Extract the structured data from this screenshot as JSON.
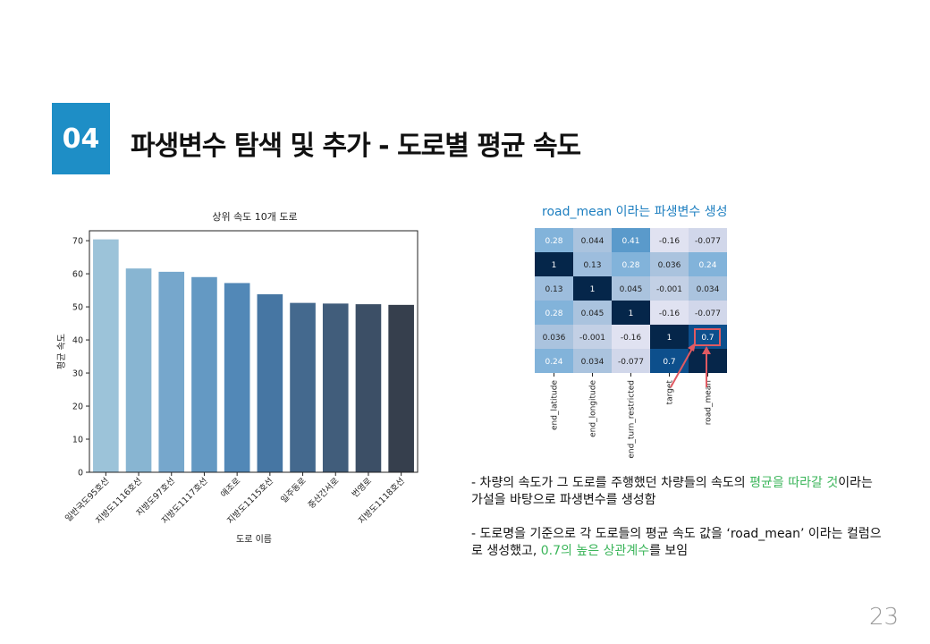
{
  "slide": {
    "number_badge": "04",
    "title": "파생변수 탐색 및 추가 - 도로별 평균 속도",
    "page_number": "23"
  },
  "colors": {
    "accent": "#1e8ec6",
    "highlight_text": "#3bb55a",
    "heatmap_caption": "#1e7fc0",
    "annotation_box": "#e05a62"
  },
  "heatmap": {
    "caption": "road_mean 이라는 파생변수 생성",
    "columns": [
      "end_latitude",
      "end_longitude",
      "end_turn_restricted",
      "target",
      "road_mean"
    ],
    "rows": [
      [
        "0.28",
        "0.044",
        "0.41",
        "-0.16",
        "-0.077"
      ],
      [
        "1",
        "0.13",
        "0.28",
        "0.036",
        "0.24"
      ],
      [
        "0.13",
        "1",
        "0.045",
        "-0.001",
        "0.034"
      ],
      [
        "0.28",
        "0.045",
        "1",
        "-0.16",
        "-0.077"
      ],
      [
        "0.036",
        "-0.001",
        "-0.16",
        "1",
        "0.7"
      ],
      [
        "0.24",
        "0.034",
        "-0.077",
        "0.7",
        ""
      ]
    ],
    "highlighted_value": "0.7"
  },
  "description": {
    "p1_parts": [
      "- 차량의 속도가 그 도로를 주행했던 차량들의 속도의 ",
      "평균을 따라갈 것",
      "이라는 가설을 바탕으로 파생변수를 생성함"
    ],
    "p2_parts": [
      "- 도로명을 기준으로 각 도로들의 평균 속도 값을 ‘road_mean’ 이라는 컬럼으로 생성했고, ",
      "0.7의 높은 상관계수",
      "를 보임"
    ]
  },
  "chart_data": {
    "type": "bar",
    "title": "상위 속도 10개 도로",
    "xlabel": "도로 이름",
    "ylabel": "평균 속도",
    "categories": [
      "일반국도95호선",
      "지방도1116호선",
      "지방도97호선",
      "지방도1117호선",
      "애조로",
      "지방도1115호선",
      "일주동로",
      "중산간서로",
      "번영로",
      "지방도1118호선"
    ],
    "values": [
      70.4,
      61.6,
      60.6,
      59.0,
      57.2,
      53.8,
      51.2,
      51.0,
      50.8,
      50.6
    ],
    "colors": [
      "#9cc3d9",
      "#88b5d2",
      "#76a7cc",
      "#6499c3",
      "#5288b7",
      "#4676a3",
      "#44698e",
      "#415d7b",
      "#3c4f66",
      "#363f4d"
    ],
    "ylim": [
      0,
      73
    ],
    "yticks": [
      0,
      10,
      20,
      30,
      40,
      50,
      60,
      70
    ],
    "grid": false
  }
}
